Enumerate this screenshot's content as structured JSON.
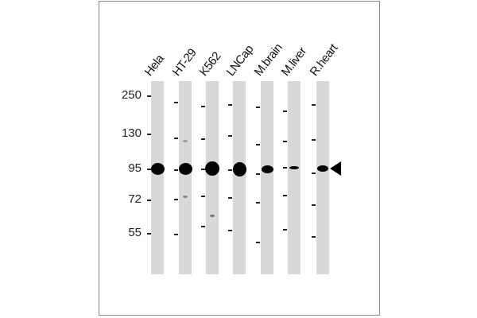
{
  "figure": {
    "lanes": [
      {
        "label": "Hela",
        "bands": [
          {
            "mw": 95,
            "intensity": "strong"
          }
        ]
      },
      {
        "label": "HT-29",
        "bands": [
          {
            "mw": 95,
            "intensity": "strong"
          },
          {
            "mw": 120,
            "intensity": "faint"
          },
          {
            "mw": 74,
            "intensity": "faint"
          }
        ]
      },
      {
        "label": "K562",
        "bands": [
          {
            "mw": 95,
            "intensity": "strong"
          },
          {
            "mw": 62,
            "intensity": "faint"
          }
        ]
      },
      {
        "label": "LNCap",
        "bands": [
          {
            "mw": 95,
            "intensity": "strong"
          }
        ]
      },
      {
        "label": "M.brain",
        "bands": [
          {
            "mw": 95,
            "intensity": "medium"
          }
        ]
      },
      {
        "label": "M.liver",
        "bands": [
          {
            "mw": 95,
            "intensity": "weak"
          }
        ]
      },
      {
        "label": "R.heart",
        "bands": [
          {
            "mw": 95,
            "intensity": "medium"
          }
        ]
      }
    ],
    "mw_markers": [
      "250",
      "130",
      "95",
      "72",
      "55"
    ],
    "arrow_target_mw": 95,
    "colors": {
      "lane": "#d8d8d8",
      "band": "#050505",
      "frame": "#8a8a8a"
    }
  }
}
